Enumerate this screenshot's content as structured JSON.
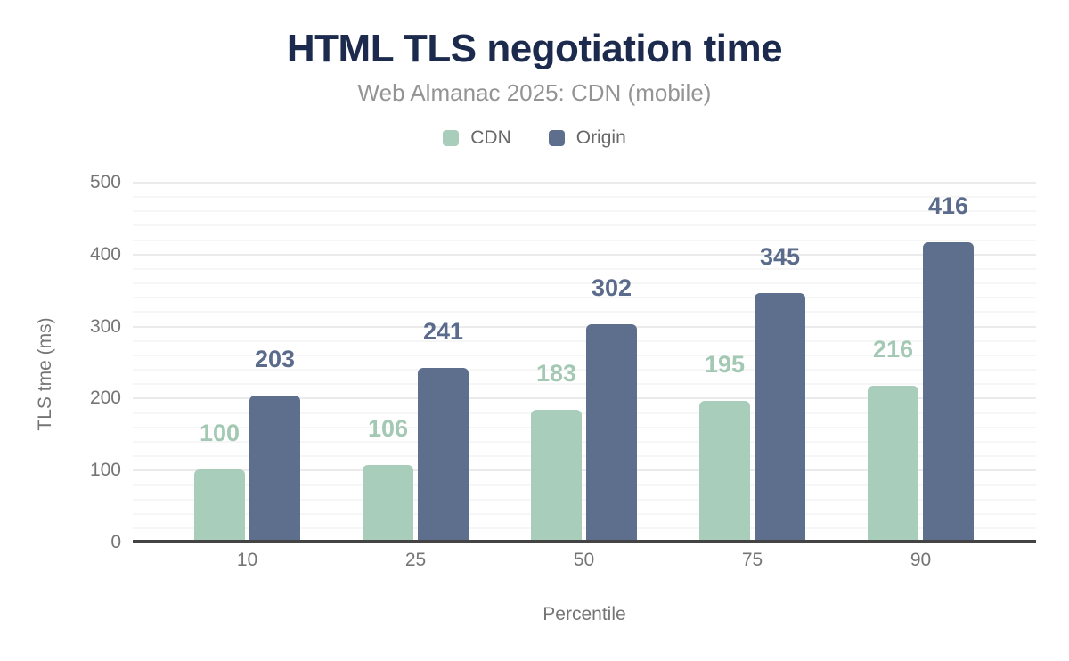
{
  "chart_data": {
    "type": "bar",
    "title": "HTML TLS negotiation time",
    "subtitle": "Web Almanac 2025: CDN (mobile)",
    "categories": [
      "10",
      "25",
      "50",
      "75",
      "90"
    ],
    "series": [
      {
        "name": "CDN",
        "color": "#a9cdbb",
        "label_color": "#a3c8b3",
        "values": [
          100,
          106,
          183,
          195,
          216
        ]
      },
      {
        "name": "Origin",
        "color": "#5e6f8e",
        "label_color": "#5a6b8b",
        "values": [
          203,
          241,
          302,
          345,
          416
        ]
      }
    ],
    "xlabel": "Percentile",
    "ylabel": "TLS tme (ms)",
    "ylim": [
      0,
      500
    ],
    "yticks": [
      0,
      100,
      200,
      300,
      400,
      500
    ],
    "minor_grid_step": 20,
    "grid": true,
    "legend_position": "top",
    "data_labels": true
  },
  "colors": {
    "title": "#1c2b4d",
    "subtitle": "#949494",
    "axis_text": "#757575",
    "legend_text": "#686868",
    "axis_line": "#444444",
    "grid_major": "#ebebeb",
    "grid_minor": "#f6f6f6",
    "background": "#ffffff"
  }
}
